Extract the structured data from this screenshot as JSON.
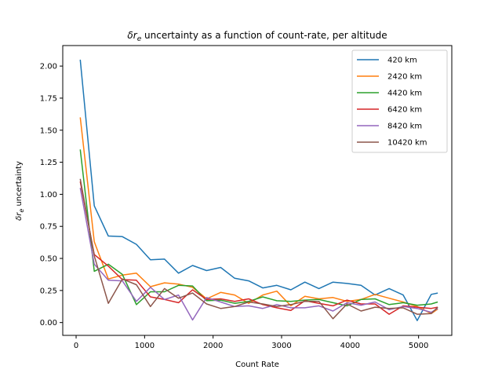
{
  "chart_data": {
    "type": "line",
    "title": "δr_e uncertainty as a function of count-rate, per altitude",
    "title_prefix": "δr",
    "title_sub": "e",
    "title_suffix": " uncertainty as a function of count-rate, per altitude",
    "xlabel": "Count Rate",
    "ylabel": "δr_e uncertainty",
    "ylabel_prefix": "δr",
    "ylabel_sub": "e",
    "ylabel_suffix": " uncertainty",
    "xlim": [
      -195,
      5485
    ],
    "ylim": [
      -0.1,
      2.16
    ],
    "xticks": [
      0,
      1000,
      2000,
      3000,
      4000,
      5000
    ],
    "xtick_labels": [
      "0",
      "1000",
      "2000",
      "3000",
      "4000",
      "5000"
    ],
    "yticks": [
      0.0,
      0.25,
      0.5,
      0.75,
      1.0,
      1.25,
      1.5,
      1.75,
      2.0
    ],
    "ytick_labels": [
      "0.00",
      "0.25",
      "0.50",
      "0.75",
      "1.00",
      "1.25",
      "1.50",
      "1.75",
      "2.00"
    ],
    "grid": false,
    "legend_position": "top-right",
    "x": [
      60,
      265,
      470,
      675,
      880,
      1085,
      1290,
      1495,
      1700,
      1905,
      2110,
      2315,
      2520,
      2725,
      2930,
      3135,
      3340,
      3545,
      3750,
      3955,
      4160,
      4365,
      4570,
      4775,
      4980,
      5185
    ],
    "series": [
      {
        "name": "420 km",
        "color": "#1f77b4",
        "x": [
          60,
          265,
          470,
          675,
          880,
          1085,
          1290,
          1495,
          1700,
          1905,
          2110,
          2315,
          2520,
          2725,
          2930,
          3135,
          3340,
          3545,
          3750,
          3955,
          4160,
          4365,
          4570,
          4775,
          4980,
          5185,
          5280
        ],
        "values": [
          2.05,
          0.91,
          0.675,
          0.67,
          0.61,
          0.49,
          0.495,
          0.385,
          0.445,
          0.405,
          0.43,
          0.345,
          0.325,
          0.27,
          0.29,
          0.255,
          0.315,
          0.265,
          0.315,
          0.305,
          0.29,
          0.215,
          0.265,
          0.215,
          0.015,
          0.22,
          0.23
        ]
      },
      {
        "name": "2420 km",
        "color": "#ff7f0e",
        "x": [
          60,
          265,
          470,
          675,
          880,
          1085,
          1290,
          1495,
          1700,
          1905,
          2110,
          2315,
          2520,
          2725,
          2930,
          3135,
          3340,
          3545,
          3750,
          3955,
          4160,
          4365,
          4570,
          4775,
          4980,
          5185,
          5280
        ],
        "values": [
          1.6,
          0.63,
          0.34,
          0.37,
          0.385,
          0.28,
          0.31,
          0.3,
          0.275,
          0.185,
          0.235,
          0.215,
          0.15,
          0.215,
          0.245,
          0.13,
          0.205,
          0.185,
          0.195,
          0.165,
          0.18,
          0.22,
          0.19,
          0.16,
          0.125,
          0.07,
          0.105
        ]
      },
      {
        "name": "4420 km",
        "color": "#2ca02c",
        "x": [
          60,
          265,
          470,
          675,
          880,
          1085,
          1290,
          1495,
          1700,
          1905,
          2110,
          2315,
          2520,
          2725,
          2930,
          3135,
          3340,
          3545,
          3750,
          3955,
          4160,
          4365,
          4570,
          4775,
          4980,
          5185,
          5280
        ],
        "values": [
          1.35,
          0.4,
          0.455,
          0.375,
          0.14,
          0.24,
          0.24,
          0.29,
          0.285,
          0.17,
          0.175,
          0.15,
          0.165,
          0.2,
          0.17,
          0.165,
          0.175,
          0.18,
          0.155,
          0.13,
          0.18,
          0.185,
          0.14,
          0.155,
          0.135,
          0.145,
          0.16
        ]
      },
      {
        "name": "6420 km",
        "color": "#d62728",
        "x": [
          60,
          265,
          470,
          675,
          880,
          1085,
          1290,
          1495,
          1700,
          1905,
          2110,
          2315,
          2520,
          2725,
          2930,
          3135,
          3340,
          3545,
          3750,
          3955,
          4160,
          4365,
          4570,
          4775,
          4980,
          5185,
          5280
        ],
        "values": [
          1.1,
          0.53,
          0.44,
          0.335,
          0.33,
          0.2,
          0.18,
          0.155,
          0.255,
          0.18,
          0.185,
          0.165,
          0.185,
          0.14,
          0.115,
          0.095,
          0.17,
          0.15,
          0.13,
          0.175,
          0.145,
          0.145,
          0.065,
          0.13,
          0.12,
          0.11,
          0.12
        ]
      },
      {
        "name": "8420 km",
        "color": "#9467bd",
        "x": [
          60,
          265,
          470,
          675,
          880,
          1085,
          1290,
          1495,
          1700,
          1905,
          2110,
          2315,
          2520,
          2725,
          2930,
          3135,
          3340,
          3545,
          3750,
          3955,
          4160,
          4365,
          4570,
          4775,
          4980,
          5185,
          5280
        ],
        "values": [
          1.05,
          0.455,
          0.33,
          0.325,
          0.165,
          0.275,
          0.18,
          0.215,
          0.02,
          0.195,
          0.16,
          0.125,
          0.13,
          0.11,
          0.14,
          0.115,
          0.115,
          0.13,
          0.09,
          0.155,
          0.135,
          0.16,
          0.1,
          0.125,
          0.11,
          0.08,
          0.11
        ]
      },
      {
        "name": "10420 km",
        "color": "#8c564b",
        "x": [
          60,
          265,
          470,
          675,
          880,
          1085,
          1290,
          1495,
          1700,
          1905,
          2110,
          2315,
          2520,
          2725,
          2930,
          3135,
          3340,
          3545,
          3750,
          3955,
          4160,
          4365,
          4570,
          4775,
          4980,
          5185,
          5280
        ],
        "values": [
          1.12,
          0.52,
          0.15,
          0.34,
          0.295,
          0.125,
          0.265,
          0.19,
          0.23,
          0.145,
          0.11,
          0.125,
          0.16,
          0.145,
          0.125,
          0.14,
          0.165,
          0.165,
          0.03,
          0.145,
          0.09,
          0.12,
          0.11,
          0.115,
          0.065,
          0.07,
          0.12
        ]
      }
    ]
  }
}
